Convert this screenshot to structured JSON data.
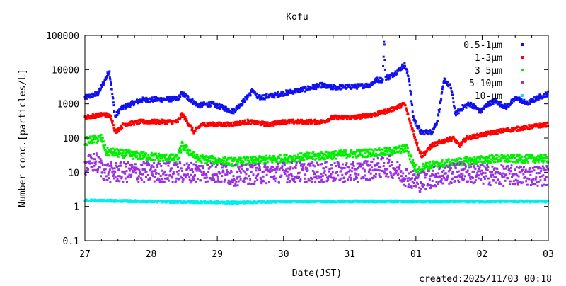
{
  "chart_data": {
    "type": "scatter",
    "title": "Kofu",
    "xlabel": "Date(JST)",
    "ylabel": "Number conc.[particles/L]",
    "yscale": "log",
    "ylim": [
      0.1,
      100000
    ],
    "yticks": [
      "100000",
      "10000",
      "1000",
      "100",
      "10",
      "1",
      "0.1"
    ],
    "ytick_values": [
      100000,
      10000,
      1000,
      100,
      10,
      1,
      0.1
    ],
    "xlim": [
      0,
      7
    ],
    "xticks": [
      "27",
      "28",
      "29",
      "30",
      "31",
      "01",
      "02",
      "03"
    ],
    "legend_position": "top-right",
    "footer": "created:2025/11/03 00:18",
    "series": [
      {
        "name": "0.5-1μm",
        "color": "#1010f0",
        "spread": 0.07,
        "x": [
          0,
          0.2,
          0.37,
          0.46,
          0.53,
          0.7,
          0.86,
          1.4,
          1.47,
          1.71,
          1.92,
          2.24,
          2.4,
          2.54,
          2.61,
          2.88,
          2.98,
          3.25,
          3.58,
          3.7,
          4.08,
          4.3,
          4.4,
          4.5,
          4.52,
          4.54,
          4.6,
          4.75,
          4.83,
          4.9,
          4.96,
          5.07,
          5.24,
          5.32,
          5.43,
          5.53,
          5.6,
          5.71,
          5.82,
          5.98,
          6.09,
          6.2,
          6.36,
          6.52,
          6.68,
          6.84,
          7
        ],
        "y": [
          1500,
          2000,
          9000,
          400,
          700,
          1000,
          1300,
          1400,
          2000,
          900,
          1000,
          600,
          1200,
          2500,
          1500,
          1800,
          2000,
          2500,
          3500,
          3000,
          3200,
          3500,
          5000,
          5000,
          80000,
          6000,
          6000,
          10000,
          14000,
          5000,
          400,
          150,
          150,
          300,
          5000,
          3000,
          500,
          800,
          1000,
          600,
          1000,
          1200,
          800,
          1500,
          1000,
          1500,
          2000
        ]
      },
      {
        "name": "1-3μm",
        "color": "#ff0000",
        "spread": 0.06,
        "x": [
          0,
          0.3,
          0.4,
          0.46,
          0.59,
          0.85,
          1.4,
          1.47,
          1.65,
          1.76,
          2.2,
          2.46,
          2.78,
          2.99,
          3.6,
          3.75,
          4.06,
          4.4,
          4.65,
          4.83,
          4.91,
          5.04,
          5.09,
          5.24,
          5.4,
          5.56,
          5.66,
          5.77,
          6.2,
          6.63,
          7
        ],
        "y": [
          400,
          500,
          400,
          150,
          250,
          300,
          300,
          500,
          150,
          250,
          250,
          300,
          250,
          300,
          300,
          400,
          400,
          500,
          700,
          1000,
          300,
          50,
          30,
          60,
          80,
          100,
          60,
          100,
          150,
          200,
          250
        ]
      },
      {
        "name": "3-5μm",
        "color": "#00ee00",
        "spread": 0.12,
        "x": [
          0,
          0.25,
          0.32,
          0.85,
          1.4,
          1.47,
          1.7,
          2.24,
          2.99,
          3.53,
          4.06,
          4.6,
          4.86,
          5.02,
          5.13,
          5.66,
          6.2,
          7
        ],
        "y": [
          80,
          100,
          40,
          30,
          25,
          60,
          25,
          20,
          25,
          30,
          35,
          40,
          50,
          10,
          15,
          20,
          25,
          25
        ]
      },
      {
        "name": "5-10μm",
        "color": "#9b30e0",
        "spread": 0.3,
        "x": [
          0,
          0.16,
          0.32,
          1.4,
          1.92,
          2.24,
          2.99,
          4.06,
          4.6,
          5.02,
          5.34,
          5.66,
          6.2,
          7
        ],
        "y": [
          15,
          20,
          10,
          10,
          10,
          8,
          10,
          10,
          15,
          5,
          8,
          10,
          8,
          8
        ]
      },
      {
        "name": "10-μm",
        "color": "#00eeee",
        "spread": 0.03,
        "x": [
          0,
          1,
          2.24,
          3,
          7
        ],
        "y": [
          1.5,
          1.4,
          1.3,
          1.4,
          1.4
        ]
      }
    ]
  }
}
